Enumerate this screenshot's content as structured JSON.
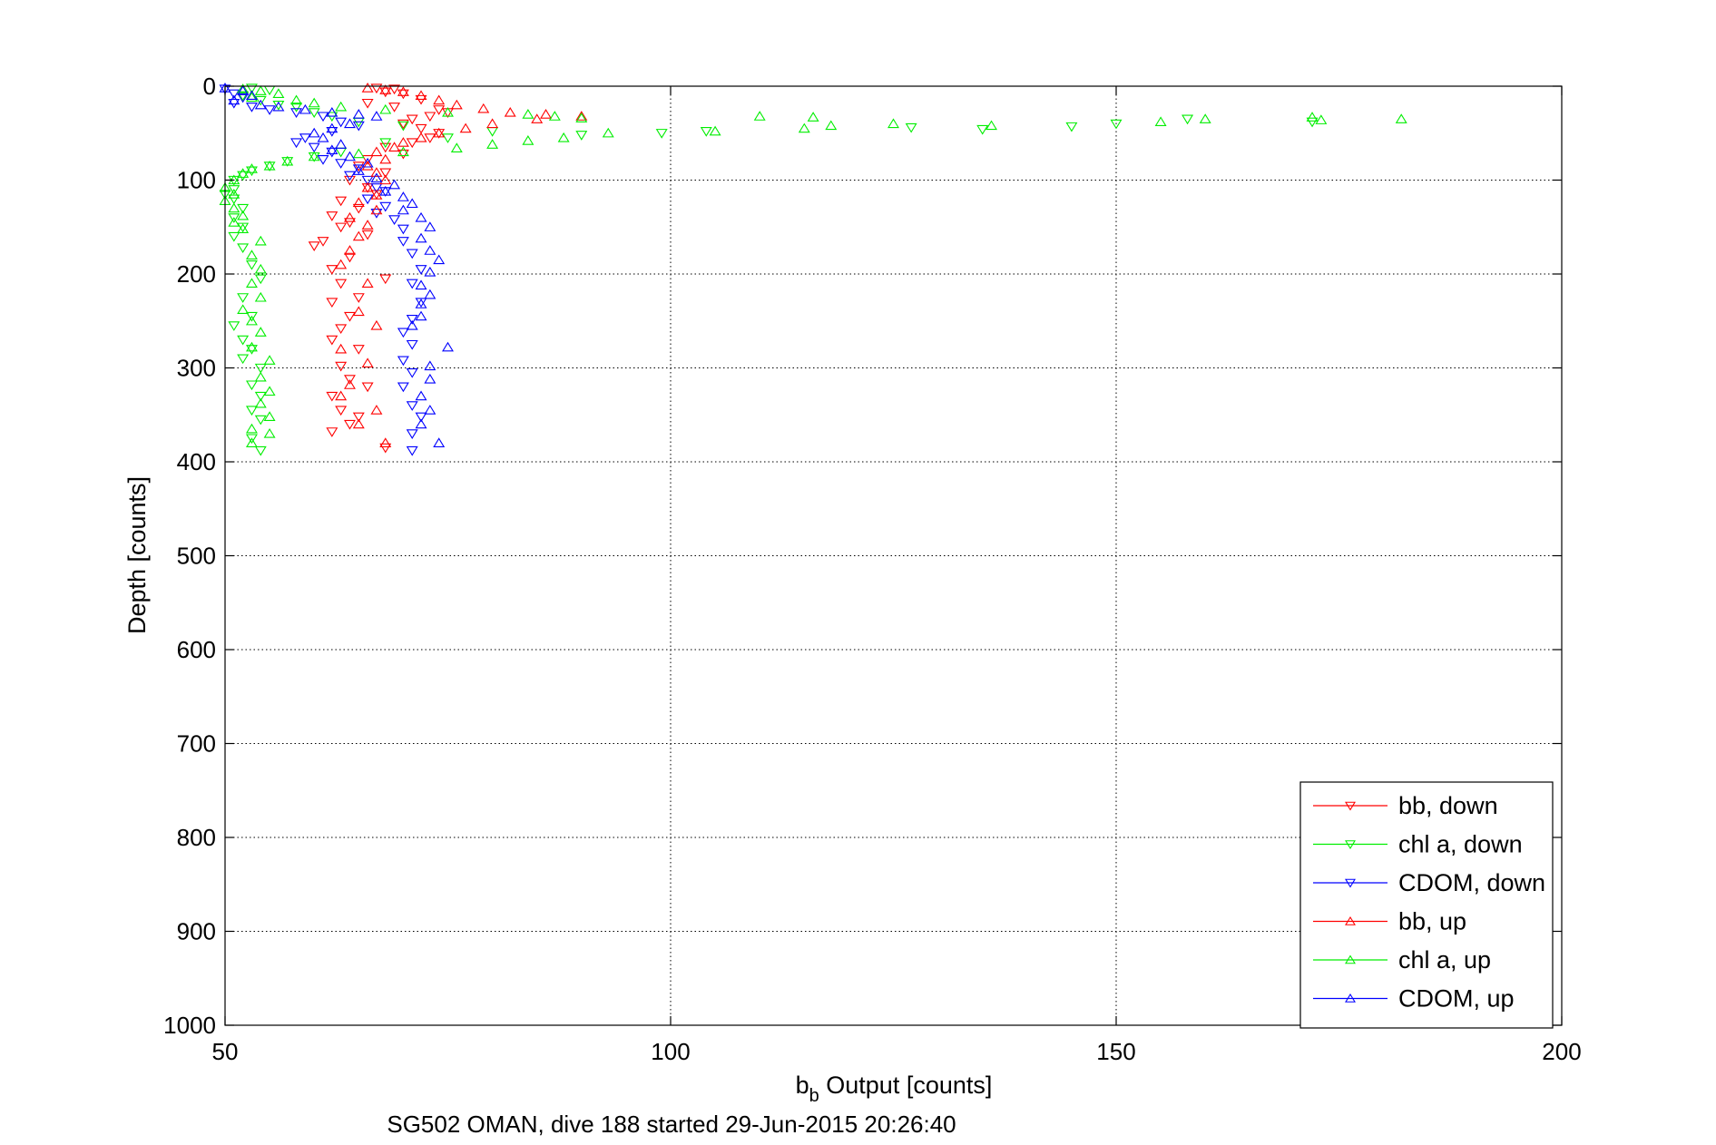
{
  "chart_data": {
    "type": "scatter",
    "xlabel": "b",
    "xlabel_sub": "b",
    "xlabel_rest": " Output [counts]",
    "ylabel": "Depth [counts]",
    "caption": "SG502 OMAN, dive 188 started 29-Jun-2015 20:26:40",
    "xlim": [
      50,
      200
    ],
    "ylim": [
      0,
      1000
    ],
    "y_reversed": true,
    "grid": true,
    "legend_position": "bottom-right",
    "x_ticks": [
      {
        "value": 50,
        "label": "50"
      },
      {
        "value": 100,
        "label": "100"
      },
      {
        "value": 150,
        "label": "150"
      },
      {
        "value": 200,
        "label": "200"
      }
    ],
    "y_ticks": [
      {
        "value": 0,
        "label": "0"
      },
      {
        "value": 100,
        "label": "100"
      },
      {
        "value": 200,
        "label": "200"
      },
      {
        "value": 300,
        "label": "300"
      },
      {
        "value": 400,
        "label": "400"
      },
      {
        "value": 500,
        "label": "500"
      },
      {
        "value": 600,
        "label": "600"
      },
      {
        "value": 700,
        "label": "700"
      },
      {
        "value": 800,
        "label": "800"
      },
      {
        "value": 900,
        "label": "900"
      },
      {
        "value": 1000,
        "label": "1000"
      }
    ],
    "series": [
      {
        "name": "bb, down",
        "color": "#ff0000",
        "marker": "triangle-down",
        "points": [
          [
            67,
            2
          ],
          [
            69,
            3
          ],
          [
            68,
            6
          ],
          [
            70,
            8
          ],
          [
            72,
            14
          ],
          [
            66,
            18
          ],
          [
            69,
            22
          ],
          [
            74,
            25
          ],
          [
            75,
            28
          ],
          [
            73,
            32
          ],
          [
            71,
            35
          ],
          [
            70,
            40
          ],
          [
            72,
            45
          ],
          [
            74,
            50
          ],
          [
            73,
            55
          ],
          [
            71,
            60
          ],
          [
            68,
            65
          ],
          [
            70,
            72
          ],
          [
            66,
            78
          ],
          [
            65,
            85
          ],
          [
            68,
            92
          ],
          [
            64,
            100
          ],
          [
            66,
            108
          ],
          [
            67,
            115
          ],
          [
            63,
            122
          ],
          [
            65,
            130
          ],
          [
            62,
            138
          ],
          [
            64,
            145
          ],
          [
            63,
            150
          ],
          [
            66,
            158
          ],
          [
            61,
            165
          ],
          [
            60,
            170
          ],
          [
            64,
            182
          ],
          [
            62,
            195
          ],
          [
            68,
            205
          ],
          [
            63,
            210
          ],
          [
            65,
            225
          ],
          [
            62,
            230
          ],
          [
            64,
            245
          ],
          [
            63,
            258
          ],
          [
            62,
            270
          ],
          [
            65,
            280
          ],
          [
            63,
            298
          ],
          [
            64,
            312
          ],
          [
            66,
            320
          ],
          [
            62,
            330
          ],
          [
            63,
            345
          ],
          [
            65,
            352
          ],
          [
            64,
            360
          ],
          [
            62,
            368
          ],
          [
            68,
            385
          ]
        ]
      },
      {
        "name": "chl a, down",
        "color": "#00ee00",
        "marker": "triangle-down",
        "points": [
          [
            53,
            2
          ],
          [
            55,
            4
          ],
          [
            52,
            10
          ],
          [
            54,
            15
          ],
          [
            56,
            20
          ],
          [
            58,
            22
          ],
          [
            60,
            28
          ],
          [
            62,
            32
          ],
          [
            65,
            38
          ],
          [
            70,
            42
          ],
          [
            80,
            48
          ],
          [
            90,
            52
          ],
          [
            99,
            50
          ],
          [
            104,
            48
          ],
          [
            127,
            44
          ],
          [
            135,
            46
          ],
          [
            145,
            43
          ],
          [
            150,
            40
          ],
          [
            158,
            35
          ],
          [
            172,
            38
          ],
          [
            75,
            55
          ],
          [
            68,
            60
          ],
          [
            63,
            70
          ],
          [
            60,
            75
          ],
          [
            57,
            80
          ],
          [
            55,
            85
          ],
          [
            53,
            90
          ],
          [
            52,
            95
          ],
          [
            51,
            100
          ],
          [
            51,
            110
          ],
          [
            50,
            115
          ],
          [
            51,
            120
          ],
          [
            52,
            130
          ],
          [
            51,
            140
          ],
          [
            52,
            150
          ],
          [
            51,
            160
          ],
          [
            52,
            172
          ],
          [
            53,
            190
          ],
          [
            54,
            205
          ],
          [
            52,
            225
          ],
          [
            53,
            245
          ],
          [
            51,
            255
          ],
          [
            52,
            270
          ],
          [
            53,
            280
          ],
          [
            52,
            290
          ],
          [
            54,
            300
          ],
          [
            53,
            318
          ],
          [
            54,
            330
          ],
          [
            53,
            345
          ],
          [
            54,
            355
          ],
          [
            53,
            375
          ],
          [
            54,
            388
          ]
        ]
      },
      {
        "name": "CDOM, down",
        "color": "#0000ff",
        "marker": "triangle-down",
        "points": [
          [
            50,
            3
          ],
          [
            51,
            8
          ],
          [
            52,
            12
          ],
          [
            51,
            18
          ],
          [
            53,
            22
          ],
          [
            55,
            25
          ],
          [
            58,
            28
          ],
          [
            61,
            32
          ],
          [
            63,
            38
          ],
          [
            65,
            42
          ],
          [
            62,
            48
          ],
          [
            59,
            55
          ],
          [
            58,
            60
          ],
          [
            60,
            65
          ],
          [
            62,
            70
          ],
          [
            61,
            78
          ],
          [
            63,
            82
          ],
          [
            65,
            88
          ],
          [
            64,
            95
          ],
          [
            66,
            100
          ],
          [
            67,
            108
          ],
          [
            68,
            112
          ],
          [
            66,
            120
          ],
          [
            68,
            128
          ],
          [
            67,
            135
          ],
          [
            69,
            142
          ],
          [
            70,
            152
          ],
          [
            70,
            165
          ],
          [
            71,
            178
          ],
          [
            72,
            195
          ],
          [
            71,
            210
          ],
          [
            72,
            230
          ],
          [
            71,
            248
          ],
          [
            70,
            262
          ],
          [
            71,
            275
          ],
          [
            70,
            292
          ],
          [
            71,
            305
          ],
          [
            70,
            320
          ],
          [
            71,
            340
          ],
          [
            72,
            352
          ],
          [
            71,
            370
          ],
          [
            71,
            388
          ]
        ]
      },
      {
        "name": "bb, up",
        "color": "#ff0000",
        "marker": "triangle-up",
        "points": [
          [
            66,
            2
          ],
          [
            68,
            4
          ],
          [
            70,
            6
          ],
          [
            72,
            10
          ],
          [
            74,
            15
          ],
          [
            76,
            20
          ],
          [
            79,
            24
          ],
          [
            82,
            28
          ],
          [
            86,
            30
          ],
          [
            90,
            32
          ],
          [
            85,
            35
          ],
          [
            80,
            40
          ],
          [
            77,
            45
          ],
          [
            74,
            50
          ],
          [
            72,
            55
          ],
          [
            70,
            60
          ],
          [
            69,
            65
          ],
          [
            67,
            70
          ],
          [
            68,
            78
          ],
          [
            66,
            85
          ],
          [
            67,
            92
          ],
          [
            68,
            100
          ],
          [
            66,
            108
          ],
          [
            67,
            116
          ],
          [
            65,
            124
          ],
          [
            67,
            132
          ],
          [
            64,
            140
          ],
          [
            66,
            148
          ],
          [
            65,
            160
          ],
          [
            64,
            175
          ],
          [
            63,
            190
          ],
          [
            66,
            210
          ],
          [
            65,
            240
          ],
          [
            67,
            255
          ],
          [
            63,
            280
          ],
          [
            66,
            295
          ],
          [
            64,
            318
          ],
          [
            63,
            330
          ],
          [
            67,
            345
          ],
          [
            65,
            360
          ],
          [
            68,
            380
          ]
        ]
      },
      {
        "name": "chl a, up",
        "color": "#00ee00",
        "marker": "triangle-up",
        "points": [
          [
            52,
            3
          ],
          [
            54,
            5
          ],
          [
            56,
            8
          ],
          [
            53,
            12
          ],
          [
            58,
            15
          ],
          [
            60,
            18
          ],
          [
            63,
            22
          ],
          [
            68,
            25
          ],
          [
            75,
            28
          ],
          [
            84,
            30
          ],
          [
            87,
            32
          ],
          [
            90,
            34
          ],
          [
            110,
            32
          ],
          [
            116,
            33
          ],
          [
            115,
            45
          ],
          [
            118,
            42
          ],
          [
            105,
            48
          ],
          [
            125,
            40
          ],
          [
            136,
            42
          ],
          [
            155,
            38
          ],
          [
            160,
            35
          ],
          [
            172,
            33
          ],
          [
            173,
            36
          ],
          [
            182,
            35
          ],
          [
            93,
            50
          ],
          [
            88,
            55
          ],
          [
            84,
            58
          ],
          [
            80,
            62
          ],
          [
            76,
            66
          ],
          [
            70,
            70
          ],
          [
            65,
            72
          ],
          [
            60,
            75
          ],
          [
            57,
            80
          ],
          [
            55,
            85
          ],
          [
            53,
            88
          ],
          [
            52,
            93
          ],
          [
            51,
            100
          ],
          [
            50,
            108
          ],
          [
            51,
            115
          ],
          [
            50,
            122
          ],
          [
            51,
            130
          ],
          [
            52,
            138
          ],
          [
            51,
            145
          ],
          [
            52,
            152
          ],
          [
            54,
            165
          ],
          [
            53,
            180
          ],
          [
            54,
            195
          ],
          [
            53,
            210
          ],
          [
            54,
            225
          ],
          [
            52,
            238
          ],
          [
            53,
            250
          ],
          [
            54,
            262
          ],
          [
            53,
            278
          ],
          [
            55,
            292
          ],
          [
            54,
            310
          ],
          [
            55,
            325
          ],
          [
            54,
            338
          ],
          [
            55,
            352
          ],
          [
            53,
            365
          ],
          [
            55,
            370
          ],
          [
            53,
            380
          ]
        ]
      },
      {
        "name": "CDOM, up",
        "color": "#0000ff",
        "marker": "triangle-up",
        "points": [
          [
            50,
            2
          ],
          [
            52,
            5
          ],
          [
            53,
            10
          ],
          [
            51,
            15
          ],
          [
            54,
            20
          ],
          [
            56,
            22
          ],
          [
            59,
            25
          ],
          [
            62,
            28
          ],
          [
            65,
            30
          ],
          [
            67,
            32
          ],
          [
            64,
            40
          ],
          [
            62,
            45
          ],
          [
            60,
            50
          ],
          [
            61,
            55
          ],
          [
            63,
            62
          ],
          [
            62,
            68
          ],
          [
            64,
            75
          ],
          [
            66,
            82
          ],
          [
            65,
            90
          ],
          [
            67,
            98
          ],
          [
            69,
            105
          ],
          [
            68,
            112
          ],
          [
            70,
            118
          ],
          [
            71,
            125
          ],
          [
            70,
            132
          ],
          [
            72,
            140
          ],
          [
            73,
            150
          ],
          [
            72,
            162
          ],
          [
            73,
            175
          ],
          [
            74,
            185
          ],
          [
            73,
            198
          ],
          [
            72,
            212
          ],
          [
            73,
            222
          ],
          [
            72,
            232
          ],
          [
            72,
            245
          ],
          [
            71,
            255
          ],
          [
            75,
            278
          ],
          [
            73,
            298
          ],
          [
            73,
            312
          ],
          [
            72,
            330
          ],
          [
            73,
            345
          ],
          [
            72,
            360
          ],
          [
            74,
            380
          ]
        ]
      }
    ]
  }
}
